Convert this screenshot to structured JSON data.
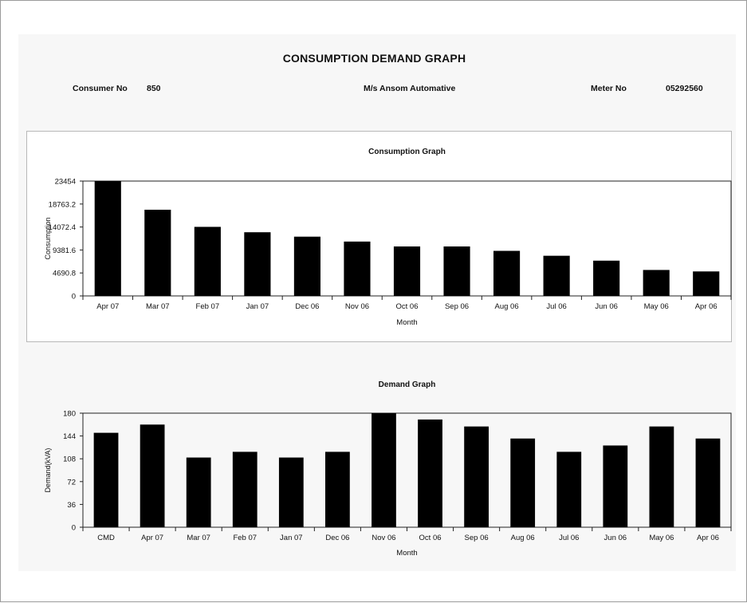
{
  "report": {
    "title": "CONSUMPTION DEMAND GRAPH",
    "consumer_label": "Consumer No",
    "consumer_value": "850",
    "company": "M/s Ansom Automative",
    "meter_label": "Meter No",
    "meter_value": "05292560"
  },
  "chart_data": [
    {
      "type": "bar",
      "title": "Consumption Graph",
      "xlabel": "Month",
      "ylabel": "Consumption",
      "categories": [
        "Apr 07",
        "Mar 07",
        "Feb 07",
        "Jan 07",
        "Dec 06",
        "Nov 06",
        "Oct 06",
        "Sep 06",
        "Aug 06",
        "Jul 06",
        "Jun 06",
        "May 06",
        "Apr 06"
      ],
      "values": [
        23454,
        17600,
        14100,
        13000,
        12100,
        11100,
        10100,
        10100,
        9200,
        8200,
        7200,
        5300,
        5000
      ],
      "yticks": [
        "0",
        "4690.8",
        "9381.6",
        "14072.4",
        "18763.2",
        "23454"
      ],
      "ylim": [
        0,
        23454
      ],
      "grid": false,
      "bar_color": "#000000"
    },
    {
      "type": "bar",
      "title": "Demand Graph",
      "xlabel": "Month",
      "ylabel": "Demand(kVA)",
      "categories": [
        "CMD",
        "Apr 07",
        "Mar 07",
        "Feb 07",
        "Jan 07",
        "Dec 06",
        "Nov 06",
        "Oct 06",
        "Sep 06",
        "Aug 06",
        "Jul 06",
        "Jun 06",
        "May 06",
        "Apr 06"
      ],
      "values": [
        149,
        162,
        110,
        119,
        110,
        119,
        180,
        170,
        159,
        140,
        119,
        129,
        159,
        140
      ],
      "yticks": [
        "0",
        "36",
        "72",
        "108",
        "144",
        "180"
      ],
      "ylim": [
        0,
        180
      ],
      "grid": false,
      "bar_color": "#000000"
    }
  ]
}
